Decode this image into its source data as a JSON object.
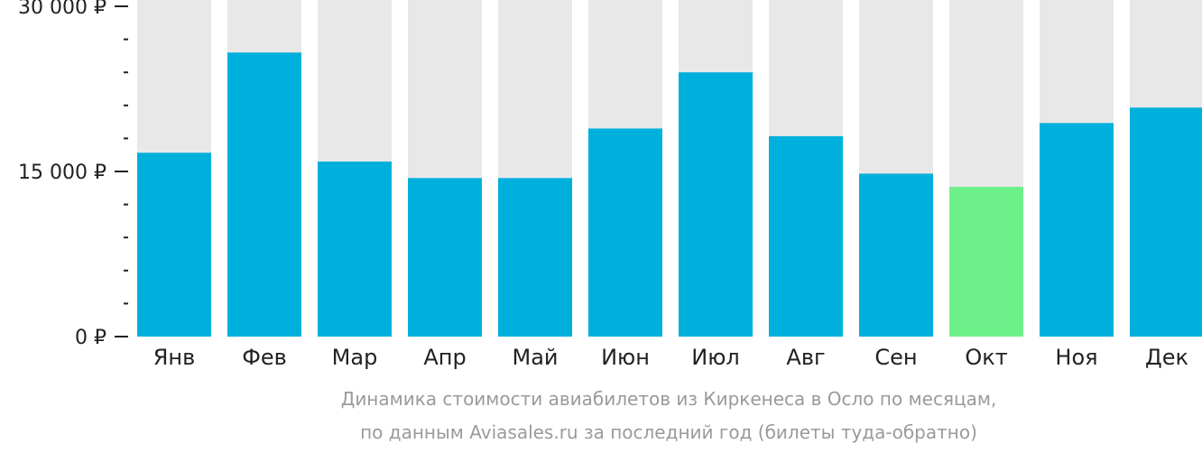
{
  "chart_data": {
    "type": "bar",
    "categories": [
      "Янв",
      "Фев",
      "Мар",
      "Апр",
      "Май",
      "Июн",
      "Июл",
      "Авг",
      "Сен",
      "Окт",
      "Ноя",
      "Дек"
    ],
    "values": [
      16700,
      25800,
      15900,
      14400,
      14400,
      18900,
      24000,
      18200,
      14800,
      13600,
      19400,
      20800
    ],
    "ylim": [
      0,
      30000
    ],
    "yticks": [
      {
        "value": 0,
        "label": "0 ₽"
      },
      {
        "value": 15000,
        "label": "15 000 ₽"
      },
      {
        "value": 30000,
        "label": "30 000 ₽"
      }
    ],
    "minor_tick_step": 3000,
    "highlight_index": 9,
    "colors": {
      "bar": "#00b0dc",
      "highlight": "#6df089",
      "background_bar": "#e8e8e8",
      "axis": "#222222"
    },
    "caption": [
      "Динамика стоимости авиабилетов из Киркенеса в Осло по месяцам,",
      "по данным Aviasales.ru за последний год (билеты туда-обратно)"
    ]
  }
}
